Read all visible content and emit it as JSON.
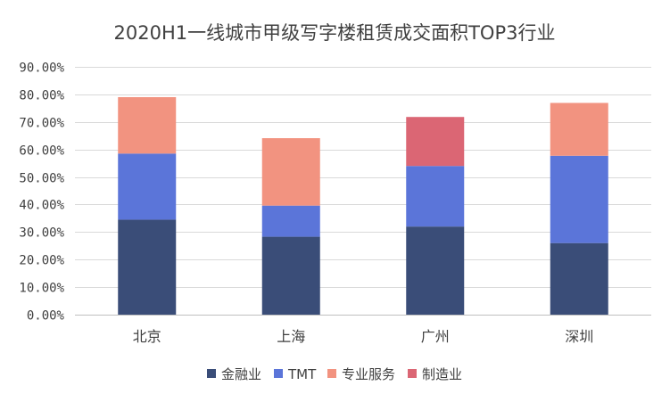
{
  "chart_data": {
    "type": "bar",
    "stacked": true,
    "title": "2020H1一线城市甲级写字楼租赁成交面积TOP3行业",
    "categories": [
      "北京",
      "上海",
      "广州",
      "深圳"
    ],
    "ylim": [
      0,
      90
    ],
    "ytick_values": [
      0,
      10,
      20,
      30,
      40,
      50,
      60,
      70,
      80,
      90
    ],
    "ytick_labels": [
      "0.00%",
      "10.00%",
      "20.00%",
      "30.00%",
      "40.00%",
      "50.00%",
      "60.00%",
      "70.00%",
      "80.00%",
      "90.00%"
    ],
    "grid": true,
    "legend_position": "bottom",
    "series": [
      {
        "name": "金融业",
        "color": "#3a4d78",
        "values": [
          34.5,
          28.3,
          32.0,
          26.0
        ]
      },
      {
        "name": "TMT",
        "color": "#5b75d9",
        "values": [
          24.0,
          11.3,
          22.0,
          31.7
        ]
      },
      {
        "name": "专业服务",
        "color": "#f29380",
        "values": [
          20.5,
          24.5,
          0,
          19.2
        ]
      },
      {
        "name": "制造业",
        "color": "#db6674",
        "values": [
          0,
          0,
          17.8,
          0
        ]
      }
    ]
  }
}
